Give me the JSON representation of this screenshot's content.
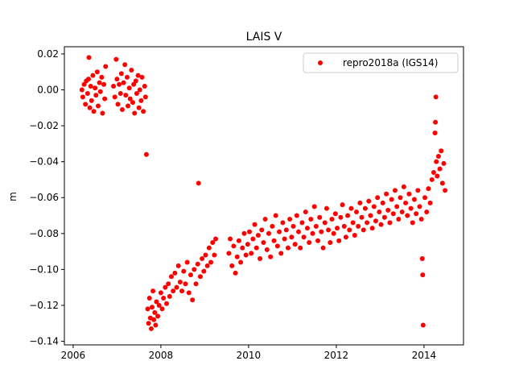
{
  "chart_data": {
    "type": "scatter",
    "title": "LAIS V",
    "xlabel": "",
    "ylabel": "m",
    "xlim": [
      2005.8,
      2014.9
    ],
    "ylim": [
      -0.142,
      0.024
    ],
    "xticks": [
      2006,
      2008,
      2010,
      2012,
      2014
    ],
    "xtick_labels": [
      "2006",
      "2008",
      "2010",
      "2012",
      "2014"
    ],
    "yticks": [
      0.02,
      0.0,
      -0.02,
      -0.04,
      -0.06,
      -0.08,
      -0.1,
      -0.12,
      -0.14
    ],
    "ytick_labels": [
      "0.02",
      "0.00",
      "−0.02",
      "−0.04",
      "−0.06",
      "−0.08",
      "−0.10",
      "−0.12",
      "−0.14"
    ],
    "grid": false,
    "legend": {
      "position": "top-right",
      "entries": [
        "repro2018a (IGS14)"
      ]
    },
    "series": [
      {
        "name": "repro2018a (IGS14)",
        "color": "#ff0000",
        "marker": "circle",
        "points": [
          [
            2006.2,
            0.0
          ],
          [
            2006.22,
            -0.004
          ],
          [
            2006.25,
            0.003
          ],
          [
            2006.28,
            -0.008
          ],
          [
            2006.3,
            0.005
          ],
          [
            2006.33,
            -0.002
          ],
          [
            2006.35,
            0.006
          ],
          [
            2006.36,
            0.018
          ],
          [
            2006.38,
            -0.01
          ],
          [
            2006.4,
            0.002
          ],
          [
            2006.42,
            -0.006
          ],
          [
            2006.45,
            0.008
          ],
          [
            2006.47,
            -0.012
          ],
          [
            2006.5,
            0.001
          ],
          [
            2006.52,
            -0.003
          ],
          [
            2006.55,
            0.01
          ],
          [
            2006.57,
            -0.009
          ],
          [
            2006.6,
            0.004
          ],
          [
            2006.62,
            -0.001
          ],
          [
            2006.65,
            0.007
          ],
          [
            2006.67,
            -0.013
          ],
          [
            2006.7,
            0.003
          ],
          [
            2006.72,
            -0.005
          ],
          [
            2006.74,
            0.013
          ],
          [
            2006.92,
            0.002
          ],
          [
            2006.95,
            -0.004
          ],
          [
            2006.98,
            0.017
          ],
          [
            2007.0,
            0.006
          ],
          [
            2007.02,
            -0.008
          ],
          [
            2007.05,
            0.003
          ],
          [
            2007.08,
            -0.002
          ],
          [
            2007.1,
            0.009
          ],
          [
            2007.12,
            -0.011
          ],
          [
            2007.15,
            0.004
          ],
          [
            2007.18,
            0.014
          ],
          [
            2007.2,
            -0.003
          ],
          [
            2007.23,
            0.007
          ],
          [
            2007.25,
            -0.009
          ],
          [
            2007.28,
            0.001
          ],
          [
            2007.3,
            -0.005
          ],
          [
            2007.33,
            0.011
          ],
          [
            2007.36,
            -0.007
          ],
          [
            2007.38,
            0.003
          ],
          [
            2007.4,
            -0.013
          ],
          [
            2007.43,
            0.005
          ],
          [
            2007.45,
            -0.002
          ],
          [
            2007.48,
            0.008
          ],
          [
            2007.5,
            -0.01
          ],
          [
            2007.52,
            0.0
          ],
          [
            2007.55,
            -0.006
          ],
          [
            2007.57,
            0.007
          ],
          [
            2007.6,
            -0.012
          ],
          [
            2007.63,
            0.002
          ],
          [
            2007.65,
            -0.004
          ],
          [
            2007.67,
            -0.036
          ],
          [
            2007.7,
            -0.122
          ],
          [
            2007.72,
            -0.13
          ],
          [
            2007.74,
            -0.116
          ],
          [
            2007.76,
            -0.127
          ],
          [
            2007.78,
            -0.133
          ],
          [
            2007.8,
            -0.121
          ],
          [
            2007.82,
            -0.112
          ],
          [
            2007.84,
            -0.128
          ],
          [
            2007.86,
            -0.124
          ],
          [
            2007.88,
            -0.131
          ],
          [
            2007.9,
            -0.118
          ],
          [
            2007.93,
            -0.126
          ],
          [
            2007.96,
            -0.12
          ],
          [
            2008.0,
            -0.113
          ],
          [
            2008.03,
            -0.122
          ],
          [
            2008.06,
            -0.116
          ],
          [
            2008.1,
            -0.11
          ],
          [
            2008.13,
            -0.119
          ],
          [
            2008.17,
            -0.108
          ],
          [
            2008.2,
            -0.115
          ],
          [
            2008.24,
            -0.104
          ],
          [
            2008.28,
            -0.112
          ],
          [
            2008.32,
            -0.102
          ],
          [
            2008.36,
            -0.11
          ],
          [
            2008.4,
            -0.098
          ],
          [
            2008.44,
            -0.107
          ],
          [
            2008.48,
            -0.112
          ],
          [
            2008.52,
            -0.101
          ],
          [
            2008.56,
            -0.108
          ],
          [
            2008.6,
            -0.096
          ],
          [
            2008.64,
            -0.113
          ],
          [
            2008.68,
            -0.103
          ],
          [
            2008.72,
            -0.117
          ],
          [
            2008.76,
            -0.1
          ],
          [
            2008.8,
            -0.108
          ],
          [
            2008.84,
            -0.097
          ],
          [
            2008.86,
            -0.052
          ],
          [
            2008.9,
            -0.104
          ],
          [
            2008.94,
            -0.094
          ],
          [
            2008.98,
            -0.101
          ],
          [
            2009.02,
            -0.092
          ],
          [
            2009.06,
            -0.098
          ],
          [
            2009.1,
            -0.088
          ],
          [
            2009.14,
            -0.096
          ],
          [
            2009.18,
            -0.085
          ],
          [
            2009.22,
            -0.092
          ],
          [
            2009.25,
            -0.083
          ],
          [
            2009.55,
            -0.091
          ],
          [
            2009.58,
            -0.083
          ],
          [
            2009.62,
            -0.098
          ],
          [
            2009.66,
            -0.087
          ],
          [
            2009.7,
            -0.102
          ],
          [
            2009.74,
            -0.093
          ],
          [
            2009.78,
            -0.084
          ],
          [
            2009.82,
            -0.096
          ],
          [
            2009.86,
            -0.088
          ],
          [
            2009.9,
            -0.08
          ],
          [
            2009.94,
            -0.092
          ],
          [
            2009.98,
            -0.086
          ],
          [
            2010.02,
            -0.079
          ],
          [
            2010.06,
            -0.091
          ],
          [
            2010.1,
            -0.083
          ],
          [
            2010.14,
            -0.075
          ],
          [
            2010.18,
            -0.088
          ],
          [
            2010.22,
            -0.081
          ],
          [
            2010.26,
            -0.094
          ],
          [
            2010.3,
            -0.078
          ],
          [
            2010.34,
            -0.085
          ],
          [
            2010.38,
            -0.072
          ],
          [
            2010.42,
            -0.089
          ],
          [
            2010.46,
            -0.08
          ],
          [
            2010.5,
            -0.093
          ],
          [
            2010.54,
            -0.076
          ],
          [
            2010.58,
            -0.084
          ],
          [
            2010.62,
            -0.07
          ],
          [
            2010.66,
            -0.087
          ],
          [
            2010.7,
            -0.079
          ],
          [
            2010.74,
            -0.091
          ],
          [
            2010.78,
            -0.074
          ],
          [
            2010.82,
            -0.083
          ],
          [
            2010.86,
            -0.078
          ],
          [
            2010.9,
            -0.088
          ],
          [
            2010.94,
            -0.072
          ],
          [
            2010.98,
            -0.082
          ],
          [
            2011.02,
            -0.076
          ],
          [
            2011.06,
            -0.086
          ],
          [
            2011.1,
            -0.07
          ],
          [
            2011.14,
            -0.079
          ],
          [
            2011.18,
            -0.088
          ],
          [
            2011.22,
            -0.074
          ],
          [
            2011.26,
            -0.082
          ],
          [
            2011.3,
            -0.068
          ],
          [
            2011.34,
            -0.077
          ],
          [
            2011.38,
            -0.085
          ],
          [
            2011.42,
            -0.072
          ],
          [
            2011.46,
            -0.08
          ],
          [
            2011.5,
            -0.065
          ],
          [
            2011.54,
            -0.076
          ],
          [
            2011.58,
            -0.084
          ],
          [
            2011.62,
            -0.071
          ],
          [
            2011.66,
            -0.079
          ],
          [
            2011.7,
            -0.088
          ],
          [
            2011.74,
            -0.074
          ],
          [
            2011.78,
            -0.066
          ],
          [
            2011.82,
            -0.078
          ],
          [
            2011.86,
            -0.085
          ],
          [
            2011.9,
            -0.072
          ],
          [
            2011.94,
            -0.08
          ],
          [
            2011.98,
            -0.069
          ],
          [
            2012.02,
            -0.077
          ],
          [
            2012.06,
            -0.084
          ],
          [
            2012.1,
            -0.071
          ],
          [
            2012.14,
            -0.064
          ],
          [
            2012.18,
            -0.076
          ],
          [
            2012.22,
            -0.082
          ],
          [
            2012.26,
            -0.07
          ],
          [
            2012.3,
            -0.078
          ],
          [
            2012.34,
            -0.066
          ],
          [
            2012.38,
            -0.074
          ],
          [
            2012.42,
            -0.081
          ],
          [
            2012.46,
            -0.068
          ],
          [
            2012.5,
            -0.076
          ],
          [
            2012.54,
            -0.063
          ],
          [
            2012.58,
            -0.071
          ],
          [
            2012.62,
            -0.078
          ],
          [
            2012.66,
            -0.066
          ],
          [
            2012.7,
            -0.074
          ],
          [
            2012.74,
            -0.062
          ],
          [
            2012.78,
            -0.07
          ],
          [
            2012.82,
            -0.077
          ],
          [
            2012.86,
            -0.065
          ],
          [
            2012.9,
            -0.073
          ],
          [
            2012.94,
            -0.06
          ],
          [
            2012.98,
            -0.068
          ],
          [
            2013.02,
            -0.075
          ],
          [
            2013.06,
            -0.063
          ],
          [
            2013.1,
            -0.071
          ],
          [
            2013.14,
            -0.058
          ],
          [
            2013.18,
            -0.067
          ],
          [
            2013.22,
            -0.074
          ],
          [
            2013.26,
            -0.061
          ],
          [
            2013.3,
            -0.069
          ],
          [
            2013.34,
            -0.056
          ],
          [
            2013.38,
            -0.065
          ],
          [
            2013.42,
            -0.072
          ],
          [
            2013.46,
            -0.06
          ],
          [
            2013.5,
            -0.068
          ],
          [
            2013.54,
            -0.054
          ],
          [
            2013.58,
            -0.063
          ],
          [
            2013.62,
            -0.07
          ],
          [
            2013.66,
            -0.058
          ],
          [
            2013.7,
            -0.066
          ],
          [
            2013.74,
            -0.074
          ],
          [
            2013.78,
            -0.061
          ],
          [
            2013.82,
            -0.069
          ],
          [
            2013.86,
            -0.056
          ],
          [
            2013.9,
            -0.065
          ],
          [
            2013.94,
            -0.072
          ],
          [
            2013.96,
            -0.094
          ],
          [
            2013.97,
            -0.103
          ],
          [
            2013.98,
            -0.131
          ],
          [
            2014.02,
            -0.06
          ],
          [
            2014.06,
            -0.068
          ],
          [
            2014.1,
            -0.055
          ],
          [
            2014.14,
            -0.063
          ],
          [
            2014.18,
            -0.05
          ],
          [
            2014.22,
            -0.046
          ],
          [
            2014.25,
            -0.024
          ],
          [
            2014.26,
            -0.018
          ],
          [
            2014.27,
            -0.004
          ],
          [
            2014.28,
            -0.04
          ],
          [
            2014.3,
            -0.048
          ],
          [
            2014.33,
            -0.037
          ],
          [
            2014.36,
            -0.044
          ],
          [
            2014.39,
            -0.034
          ],
          [
            2014.42,
            -0.052
          ],
          [
            2014.45,
            -0.041
          ],
          [
            2014.48,
            -0.056
          ]
        ]
      }
    ]
  }
}
